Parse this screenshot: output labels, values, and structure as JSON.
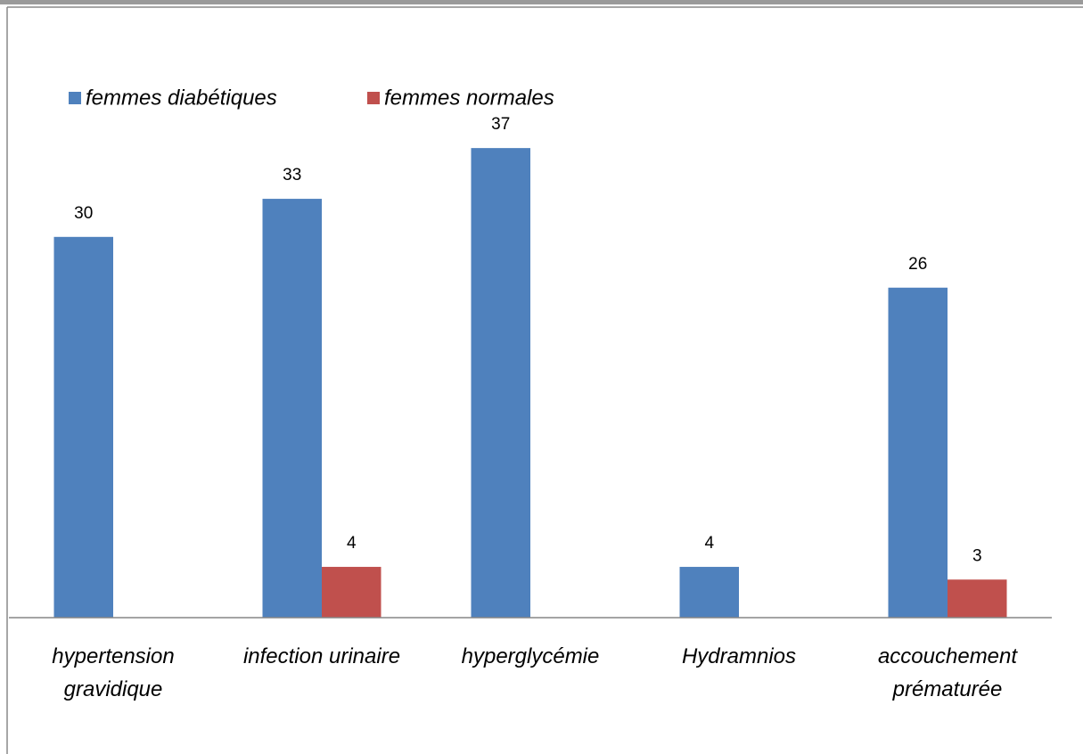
{
  "chart_data": {
    "type": "bar",
    "categories": [
      "hypertension gravidique",
      "infection urinaire",
      "hyperglycémie",
      "Hydramnios",
      "accouchement prématurée"
    ],
    "series": [
      {
        "name": "femmes diabétiques",
        "color": "#4f81bd",
        "values": [
          30,
          33,
          37,
          4,
          26
        ]
      },
      {
        "name": "femmes normales",
        "color": "#c0504d",
        "values": [
          null,
          4,
          null,
          null,
          3
        ]
      }
    ],
    "ylim": [
      0,
      40
    ],
    "legend": "top-left",
    "data_labels": true
  }
}
